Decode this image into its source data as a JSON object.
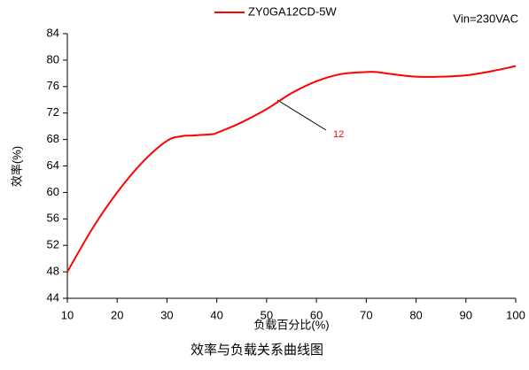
{
  "chart_data": {
    "type": "line",
    "title": "效率与负载关系曲线图",
    "xlabel": "负载百分比(%)",
    "ylabel": "效率(%)",
    "condition": "Vin=230VAC",
    "annotation": "12",
    "x": [
      10,
      15,
      20,
      25,
      30,
      33,
      35,
      39,
      40,
      45,
      50,
      55,
      60,
      65,
      70,
      72,
      75,
      80,
      85,
      90,
      95,
      100
    ],
    "series": [
      {
        "name": "ZY0GA12CD-5W",
        "color": "#ff0000",
        "values": [
          48,
          54.5,
          60,
          64.5,
          67.8,
          68.5,
          68.6,
          68.8,
          69,
          70.6,
          72.6,
          75,
          76.8,
          77.9,
          78.2,
          78.2,
          77.9,
          77.5,
          77.5,
          77.7,
          78.3,
          79.1
        ]
      }
    ],
    "xlim": [
      10,
      100
    ],
    "xticks": [
      10,
      20,
      30,
      40,
      50,
      60,
      70,
      80,
      90,
      100
    ],
    "ylim": [
      44,
      84
    ],
    "yticks": [
      44,
      48,
      52,
      56,
      60,
      64,
      68,
      72,
      76,
      80,
      84
    ],
    "grid": false
  }
}
